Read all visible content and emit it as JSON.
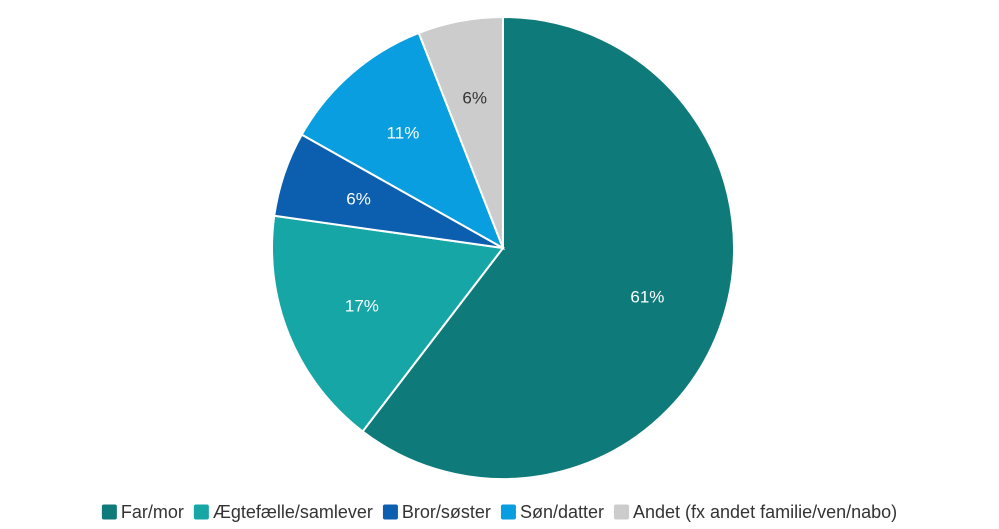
{
  "chart_data": {
    "type": "pie",
    "title": "",
    "start_angle_deg": 0,
    "direction": "clockwise",
    "slices": [
      {
        "name": "Far/mor",
        "value": 61,
        "label": "61%",
        "color": "#0f7a7a",
        "label_color": "#ffffff"
      },
      {
        "name": "Ægtefælle/samlever",
        "value": 17,
        "label": "17%",
        "color": "#17a6a6",
        "label_color": "#ffffff"
      },
      {
        "name": "Bror/søster",
        "value": 6,
        "label": "6%",
        "color": "#0b5fae",
        "label_color": "#ffffff"
      },
      {
        "name": "Søn/datter",
        "value": 11,
        "label": "11%",
        "color": "#089ee0",
        "label_color": "#ffffff"
      },
      {
        "name": "Andet (fx andet familie/ven/nabo)",
        "value": 6,
        "label": "6%",
        "color": "#cccccc",
        "label_color": "#333333"
      }
    ],
    "legend_position": "bottom"
  }
}
